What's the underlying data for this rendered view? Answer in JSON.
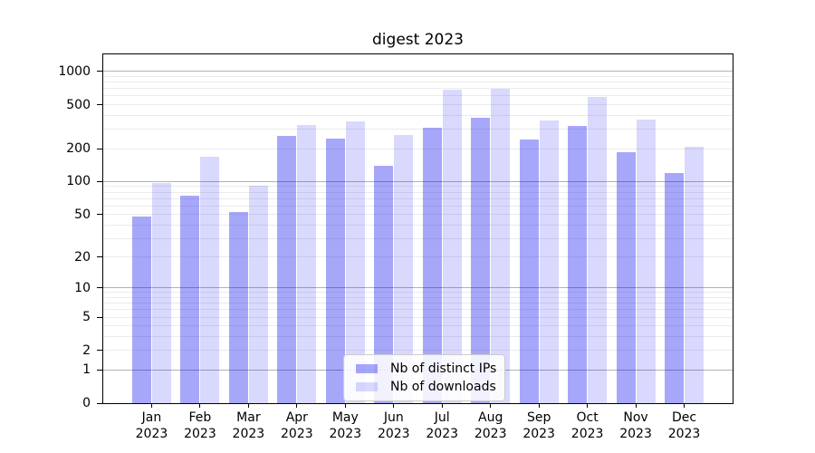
{
  "chart_data": {
    "type": "bar",
    "title": "digest 2023",
    "categories": [
      "Jan\n2023",
      "Feb\n2023",
      "Mar\n2023",
      "Apr\n2023",
      "May\n2023",
      "Jun\n2023",
      "Jul\n2023",
      "Aug\n2023",
      "Sep\n2023",
      "Oct\n2023",
      "Nov\n2023",
      "Dec\n2023"
    ],
    "series": [
      {
        "name": "Nb of distinct IPs",
        "color": "rgba(0,0,240,0.345)",
        "values": [
          48,
          74,
          53,
          260,
          245,
          139,
          310,
          380,
          240,
          320,
          186,
          120
        ]
      },
      {
        "name": "Nb of downloads",
        "color": "rgba(0,0,240,0.15)",
        "values": [
          97,
          168,
          92,
          330,
          350,
          265,
          685,
          700,
          360,
          585,
          370,
          208
        ]
      }
    ],
    "xlabel": "",
    "ylabel": "",
    "y_scale": "log10(1+y)",
    "y_ticks": [
      1000,
      500,
      200,
      100,
      50,
      20,
      10,
      5,
      2,
      1,
      0
    ],
    "ylim": [
      0,
      1430
    ],
    "grid": {
      "major": [
        1,
        10,
        100,
        1000
      ],
      "minor": [
        2,
        3,
        4,
        5,
        6,
        7,
        8,
        9,
        20,
        30,
        40,
        50,
        60,
        70,
        80,
        90,
        200,
        300,
        400,
        500,
        600,
        700,
        800,
        900
      ]
    },
    "legend_position": "lower center",
    "colors": {
      "major_grid": "#b2b2b2",
      "minor_grid": "#ebebeb",
      "spine": "#000000",
      "text": "#000000"
    }
  }
}
